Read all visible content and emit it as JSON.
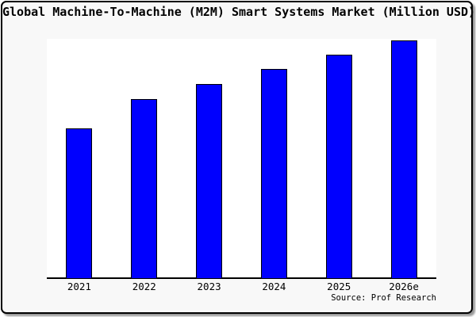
{
  "figure": {
    "background_color": "#f8f8f8",
    "border_color": "#000000",
    "source_label": "Source: Prof Research"
  },
  "chart_data": {
    "type": "bar",
    "title": "Global Machine-To-Machine (M2M) Smart Systems Market (Million USD)",
    "categories": [
      "2021",
      "2022",
      "2023",
      "2024",
      "2025",
      "2026e"
    ],
    "values": [
      63.1,
      75.4,
      81.7,
      88.0,
      94.0,
      100.0
    ],
    "values_note": "no y-axis tick labels shown in chart; values are bar heights as percent of tallest (2026e) bar",
    "xlabel": "",
    "ylabel": "",
    "ylim": [
      0,
      100
    ],
    "grid": false,
    "legend": false,
    "y_axis_visible": false,
    "bar_color": "#0000fe",
    "bar_border_color": "#000000",
    "plot_background": "#ffffff",
    "source": "Source: Prof Research"
  }
}
